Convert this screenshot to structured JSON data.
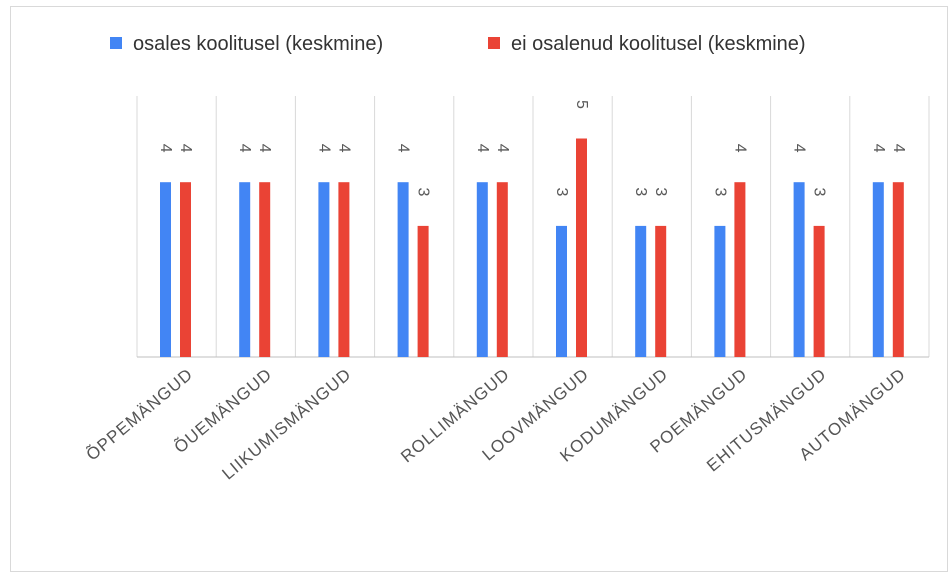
{
  "chart_data": {
    "type": "bar",
    "categories": [
      "ÕPPEMÄNGUD",
      "ÕUEMÄNGUD",
      "LIIKUMISMÄNGUD",
      "",
      "ROLLIMÄNGUD",
      "LOOVMÄNGUD",
      "KODUMÄNGUD",
      "POEMÄNGUD",
      "EHITUSMÄNGUD",
      "AUTOMÄNGUD"
    ],
    "series": [
      {
        "name": "osales koolitusel (keskmine)",
        "color": "#4285f4",
        "values": [
          4,
          4,
          4,
          4,
          4,
          3,
          3,
          3,
          4,
          4
        ]
      },
      {
        "name": "ei osalenud koolitusel (keskmine)",
        "color": "#ea4335",
        "values": [
          4,
          4,
          4,
          3,
          4,
          5,
          3,
          4,
          3,
          4
        ]
      }
    ],
    "ylim": [
      0,
      6
    ],
    "legend_position": "top",
    "grid": "vertical category separators",
    "data_labels": true
  }
}
